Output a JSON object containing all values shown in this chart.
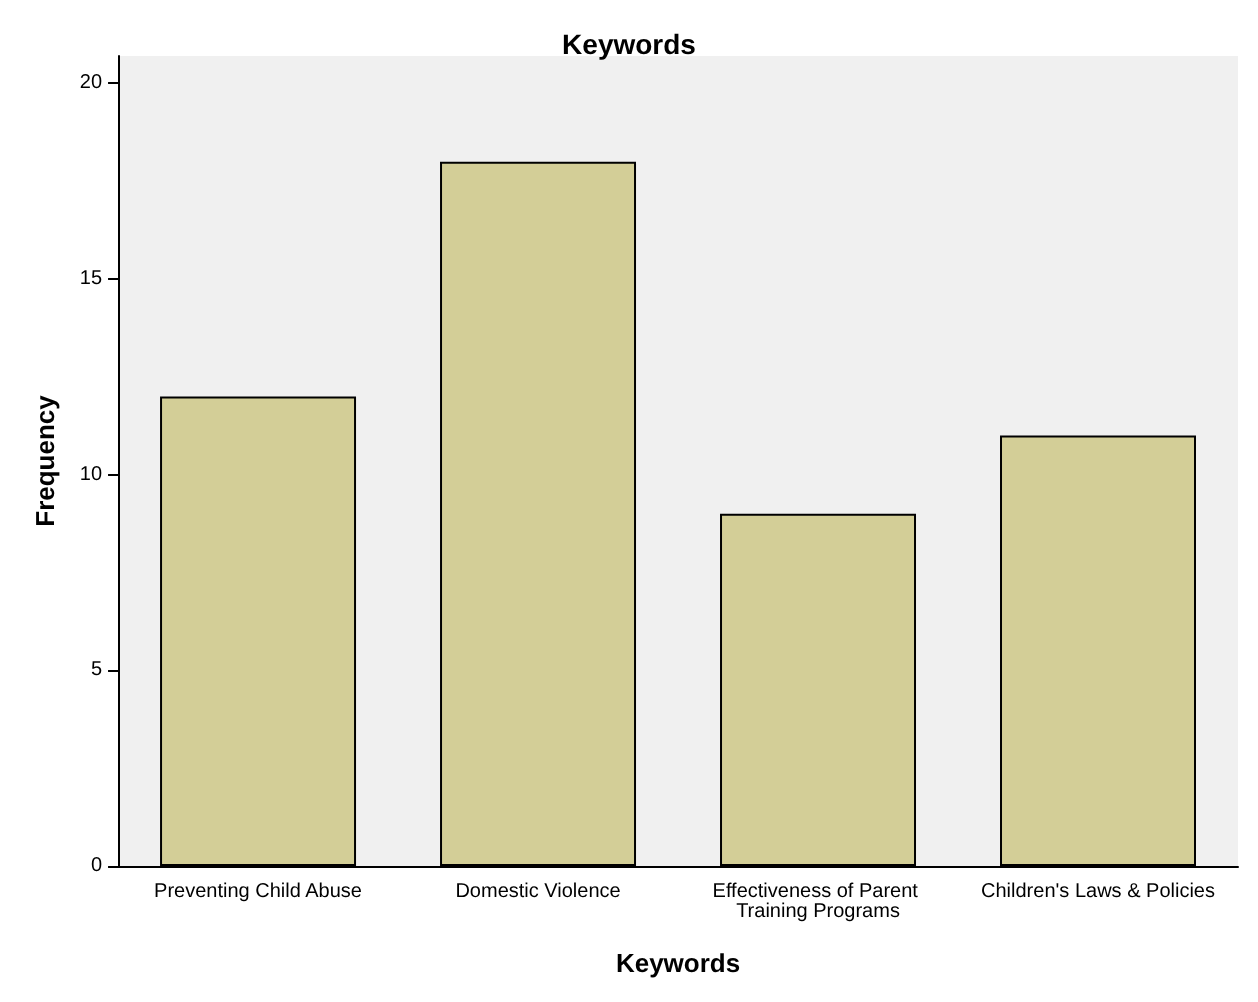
{
  "chart_data": {
    "type": "bar",
    "title": "Keywords",
    "xlabel": "Keywords",
    "ylabel": "Frequency",
    "categories": [
      "Preventing Child Abuse",
      "Domestic Violence",
      "Effectiveness of Parent Training Programs",
      "Children's Laws & Policies"
    ],
    "values": [
      12,
      18,
      9,
      11
    ],
    "color": "#d3ce97",
    "ylim": [
      0,
      20.7
    ],
    "yticks": [
      0,
      5,
      10,
      15,
      20
    ],
    "grid": false
  }
}
